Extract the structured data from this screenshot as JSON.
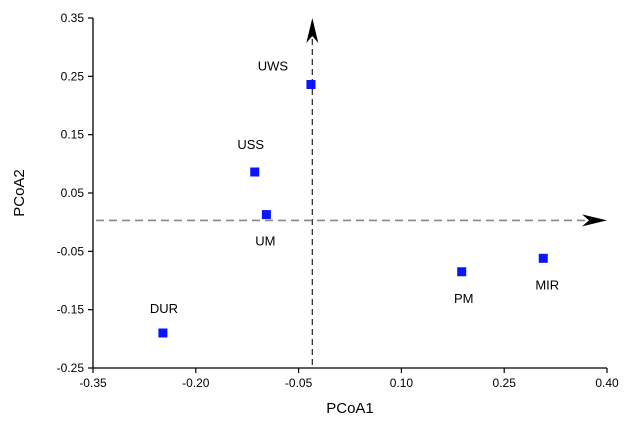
{
  "chart_data": {
    "type": "scatter",
    "xlabel": "PCoA1",
    "ylabel": "PCoA2",
    "xlim": [
      -0.35,
      0.4
    ],
    "ylim": [
      -0.25,
      0.35
    ],
    "x_ticks": [
      "-0.35",
      "-0.20",
      "-0.05",
      "0.10",
      "0.25",
      "0.40"
    ],
    "y_ticks": [
      "0.35",
      "0.25",
      "0.15",
      "0.05",
      "-0.05",
      "-0.15",
      "-0.25"
    ],
    "grid": false,
    "points": [
      {
        "label": "UWS",
        "x": -0.032,
        "y": 0.236
      },
      {
        "label": "USS",
        "x": -0.114,
        "y": 0.086
      },
      {
        "label": "UM",
        "x": -0.097,
        "y": 0.013
      },
      {
        "label": "DUR",
        "x": -0.248,
        "y": -0.19
      },
      {
        "label": "PM",
        "x": 0.188,
        "y": -0.085
      },
      {
        "label": "MIR",
        "x": 0.307,
        "y": -0.062
      }
    ],
    "reference_lines": {
      "vertical_x": -0.03,
      "horizontal_y": 0.003
    },
    "marker_color": "#0a14ff"
  }
}
